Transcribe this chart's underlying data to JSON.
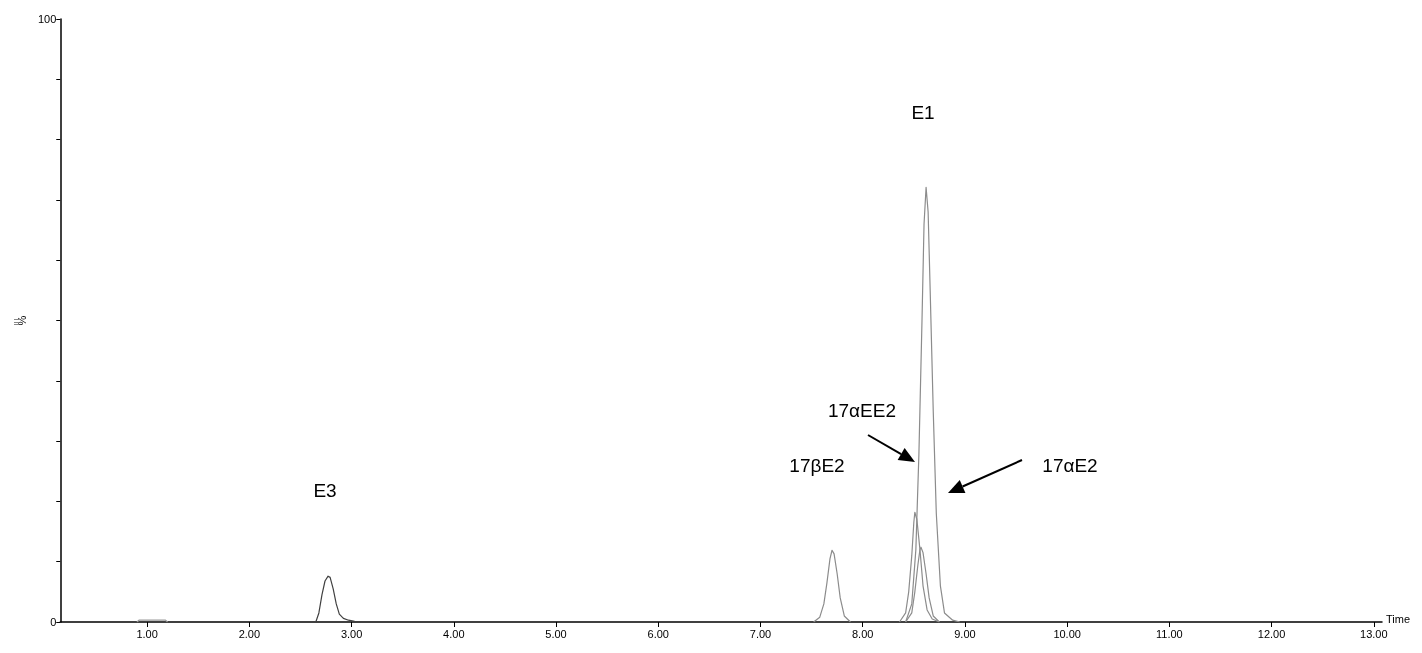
{
  "chart_data": {
    "type": "line",
    "xlabel": "Time",
    "ylabel": "%",
    "xlim": [
      0.15,
      13.08
    ],
    "ylim": [
      0,
      100
    ],
    "xticks": [
      {
        "value": 1,
        "label": "1.00"
      },
      {
        "value": 2,
        "label": "2.00"
      },
      {
        "value": 3,
        "label": "3.00"
      },
      {
        "value": 4,
        "label": "4.00"
      },
      {
        "value": 5,
        "label": "5.00"
      },
      {
        "value": 6,
        "label": "6.00"
      },
      {
        "value": 7,
        "label": "7.00"
      },
      {
        "value": 8,
        "label": "8.00"
      },
      {
        "value": 9,
        "label": "9.00"
      },
      {
        "value": 10,
        "label": "10.00"
      },
      {
        "value": 11,
        "label": "11.00"
      },
      {
        "value": 12,
        "label": "12.00"
      },
      {
        "value": 13,
        "label": "13.00"
      }
    ],
    "yticks": [
      0,
      {
        "value": 10,
        "label": null
      },
      {
        "value": 20,
        "label": null
      },
      {
        "value": 30,
        "label": null
      },
      {
        "value": 40,
        "label": null
      },
      {
        "value": 50,
        "label": null
      },
      {
        "value": 60,
        "label": null
      },
      {
        "value": 70,
        "label": null
      },
      {
        "value": 80,
        "label": null
      },
      {
        "value": 90,
        "label": null
      },
      100
    ],
    "grid": false,
    "marker": "none",
    "line_style": "solid",
    "series": [
      {
        "color": "#9a9a9a",
        "x": [
          0.9,
          0.92,
          1.18,
          1.2
        ],
        "values": [
          0,
          0.3,
          0.3,
          0
        ]
      },
      {
        "color": "#404040",
        "x": [
          2.6,
          2.65,
          2.68,
          2.71,
          2.74,
          2.77,
          2.79,
          2.82,
          2.85,
          2.88,
          2.92,
          2.97,
          3.03,
          3.1
        ],
        "values": [
          0,
          0,
          1.5,
          4.5,
          6.8,
          7.6,
          7.4,
          5.5,
          3,
          1.3,
          0.6,
          0.3,
          0.1,
          0
        ]
      },
      {
        "color": "#8c8c8c",
        "x": [
          7.52,
          7.58,
          7.62,
          7.65,
          7.68,
          7.7,
          7.72,
          7.75,
          7.78,
          7.82,
          7.88
        ],
        "values": [
          0,
          0.8,
          3,
          6.5,
          10.5,
          11.9,
          11.3,
          8,
          4,
          1,
          0
        ]
      },
      {
        "color": "#8c8c8c",
        "x": [
          8.36,
          8.42,
          8.45,
          8.48,
          8.5,
          8.51,
          8.53,
          8.56,
          8.59,
          8.63,
          8.68,
          8.75
        ],
        "values": [
          0,
          1.5,
          5,
          11,
          16.5,
          18.2,
          17,
          12,
          6,
          2,
          0.5,
          0
        ]
      },
      {
        "color": "#8c8c8c",
        "x": [
          8.42,
          8.48,
          8.51,
          8.54,
          8.56,
          8.57,
          8.59,
          8.62,
          8.65,
          8.69,
          8.75
        ],
        "values": [
          0,
          1.5,
          5,
          9.5,
          12,
          12.4,
          11.5,
          8,
          4,
          1,
          0
        ]
      },
      {
        "color": "#8c8c8c",
        "x": [
          8.42,
          8.48,
          8.52,
          8.55,
          8.58,
          8.6,
          8.62,
          8.64,
          8.66,
          8.69,
          8.72,
          8.76,
          8.8,
          8.88,
          8.95
        ],
        "values": [
          0,
          3,
          12,
          28,
          50,
          66,
          72.1,
          68,
          55,
          35,
          18,
          6,
          1.5,
          0.3,
          0
        ]
      }
    ],
    "annotations": [
      "E3",
      "17βE2",
      "17αEE2",
      "17αE2",
      "E1"
    ]
  }
}
